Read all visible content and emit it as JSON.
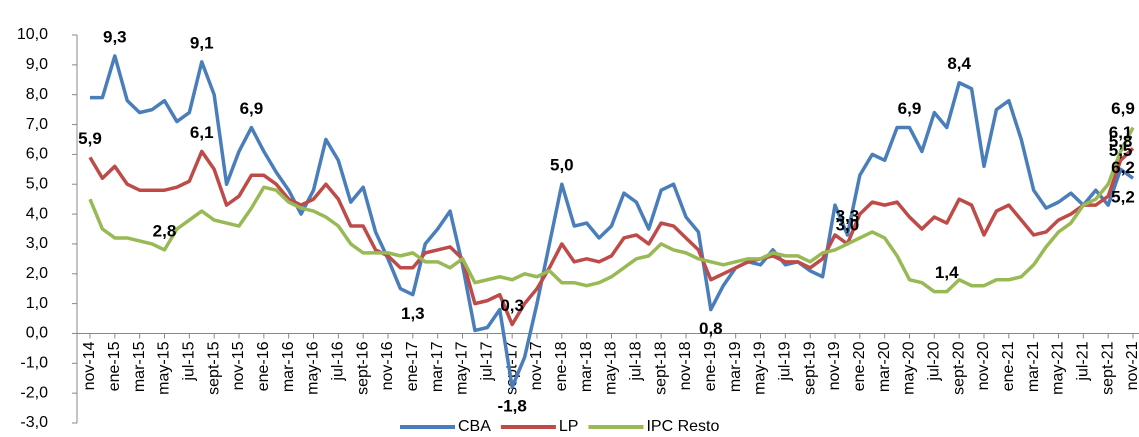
{
  "chart_data": {
    "type": "line",
    "categories": [
      "nov-14",
      null,
      "ene-15",
      null,
      "mar-15",
      null,
      "may-15",
      null,
      "jul-15",
      null,
      "sept-15",
      null,
      "nov-15",
      null,
      "ene-16",
      null,
      "mar-16",
      null,
      "may-16",
      null,
      "jul-16",
      null,
      "sept-16",
      null,
      "nov-16",
      null,
      "ene-17",
      null,
      "mar-17",
      null,
      "may-17",
      null,
      "jul-17",
      null,
      "sept-17",
      null,
      "nov-17",
      null,
      "ene-18",
      null,
      "mar-18",
      null,
      "may-18",
      null,
      "jul-18",
      null,
      "sept-18",
      null,
      "nov-18",
      null,
      "ene-19",
      null,
      "mar-19",
      null,
      "may-19",
      null,
      "jul-19",
      null,
      "sept-19",
      null,
      "nov-19",
      null,
      "ene-20",
      null,
      "mar-20",
      null,
      "may-20",
      null,
      "jul-20",
      null,
      "sept-20",
      null,
      "nov-20",
      null,
      "ene-21",
      null,
      "mar-21",
      null,
      "may-21",
      null,
      "jul-21",
      null,
      "sept-21",
      null,
      "nov-21"
    ],
    "series": [
      {
        "name": "CBA",
        "color": "#4a7ebb",
        "values": [
          7.9,
          7.9,
          9.3,
          7.8,
          7.4,
          7.5,
          7.8,
          7.1,
          7.4,
          9.1,
          8.0,
          5.0,
          6.1,
          6.9,
          6.1,
          5.4,
          4.8,
          4.0,
          4.8,
          6.5,
          5.8,
          4.4,
          4.9,
          3.4,
          2.5,
          1.5,
          1.3,
          3.0,
          3.5,
          4.1,
          2.3,
          0.1,
          0.2,
          0.8,
          -1.8,
          -0.8,
          1.0,
          3.0,
          5.0,
          3.6,
          3.7,
          3.2,
          3.6,
          4.7,
          4.4,
          3.5,
          4.8,
          5.0,
          3.9,
          3.4,
          0.8,
          1.6,
          2.2,
          2.4,
          2.3,
          2.8,
          2.3,
          2.4,
          2.1,
          1.9,
          4.3,
          3.3,
          5.3,
          6.0,
          5.8,
          6.9,
          6.9,
          6.1,
          7.4,
          6.9,
          8.4,
          8.2,
          5.6,
          7.5,
          7.8,
          6.5,
          4.8,
          4.2,
          4.4,
          4.7,
          4.3,
          4.8,
          4.3,
          5.5,
          5.2
        ],
        "value_labels": [
          null,
          null,
          "9,3",
          null,
          null,
          null,
          null,
          null,
          null,
          "9,1",
          null,
          null,
          null,
          "6,9",
          null,
          null,
          null,
          null,
          null,
          null,
          null,
          null,
          null,
          null,
          null,
          null,
          "1,3",
          null,
          null,
          null,
          null,
          null,
          null,
          null,
          "-1,8",
          null,
          null,
          null,
          "5,0",
          null,
          null,
          null,
          null,
          null,
          null,
          null,
          null,
          null,
          null,
          null,
          "0,8",
          null,
          null,
          null,
          null,
          null,
          null,
          null,
          null,
          null,
          null,
          "3,3",
          null,
          null,
          null,
          null,
          "6,9",
          null,
          null,
          null,
          "8,4",
          null,
          null,
          null,
          null,
          null,
          null,
          null,
          null,
          null,
          null,
          null,
          null,
          "5,5",
          "5,2"
        ]
      },
      {
        "name": "LP",
        "color": "#be4b48",
        "values": [
          5.9,
          5.2,
          5.6,
          5.0,
          4.8,
          4.8,
          4.8,
          4.9,
          5.1,
          6.1,
          5.5,
          4.3,
          4.6,
          5.3,
          5.3,
          5.0,
          4.5,
          4.3,
          4.5,
          5.0,
          4.5,
          3.6,
          3.6,
          2.8,
          2.6,
          2.2,
          2.2,
          2.7,
          2.8,
          2.9,
          2.5,
          1.0,
          1.1,
          1.3,
          0.3,
          1.0,
          1.5,
          2.2,
          3.0,
          2.4,
          2.5,
          2.4,
          2.6,
          3.2,
          3.3,
          3.0,
          3.7,
          3.6,
          3.2,
          2.8,
          1.8,
          2.0,
          2.2,
          2.4,
          2.5,
          2.6,
          2.4,
          2.4,
          2.2,
          2.5,
          3.3,
          3.0,
          4.0,
          4.4,
          4.3,
          4.4,
          3.9,
          3.5,
          3.9,
          3.7,
          4.5,
          4.3,
          3.3,
          4.1,
          4.3,
          3.8,
          3.3,
          3.4,
          3.8,
          4.0,
          4.3,
          4.3,
          4.6,
          5.8,
          6.2
        ],
        "value_labels": [
          "5,9",
          null,
          null,
          null,
          null,
          null,
          null,
          null,
          null,
          "6,1",
          null,
          null,
          null,
          null,
          null,
          null,
          null,
          null,
          null,
          null,
          null,
          null,
          null,
          null,
          null,
          null,
          null,
          null,
          null,
          null,
          null,
          null,
          null,
          null,
          "0,3",
          null,
          null,
          null,
          null,
          null,
          null,
          null,
          null,
          null,
          null,
          null,
          null,
          null,
          null,
          null,
          null,
          null,
          null,
          null,
          null,
          null,
          null,
          null,
          null,
          null,
          null,
          "3,0",
          null,
          null,
          null,
          null,
          null,
          null,
          null,
          null,
          null,
          null,
          null,
          null,
          null,
          null,
          null,
          null,
          null,
          null,
          null,
          null,
          null,
          "5,8",
          "6,2"
        ]
      },
      {
        "name": "IPC Resto",
        "color": "#98b954",
        "values": [
          4.5,
          3.5,
          3.2,
          3.2,
          3.1,
          3.0,
          2.8,
          3.5,
          3.8,
          4.1,
          3.8,
          3.7,
          3.6,
          4.2,
          4.9,
          4.8,
          4.4,
          4.2,
          4.1,
          3.9,
          3.6,
          3.0,
          2.7,
          2.7,
          2.7,
          2.6,
          2.7,
          2.4,
          2.4,
          2.2,
          2.5,
          1.7,
          1.8,
          1.9,
          1.8,
          2.0,
          1.9,
          2.1,
          1.7,
          1.7,
          1.6,
          1.7,
          1.9,
          2.2,
          2.5,
          2.6,
          3.0,
          2.8,
          2.7,
          2.5,
          2.4,
          2.3,
          2.4,
          2.5,
          2.5,
          2.7,
          2.6,
          2.6,
          2.4,
          2.7,
          2.8,
          3.0,
          3.2,
          3.4,
          3.2,
          2.6,
          1.8,
          1.7,
          1.4,
          1.4,
          1.8,
          1.6,
          1.6,
          1.8,
          1.8,
          1.9,
          2.3,
          2.9,
          3.4,
          3.7,
          4.3,
          4.5,
          5.0,
          6.1,
          6.9
        ],
        "value_labels": [
          null,
          null,
          null,
          null,
          null,
          null,
          "2,8",
          null,
          null,
          null,
          null,
          null,
          null,
          null,
          null,
          null,
          null,
          null,
          null,
          null,
          null,
          null,
          null,
          null,
          null,
          null,
          null,
          null,
          null,
          null,
          null,
          null,
          null,
          null,
          null,
          null,
          null,
          null,
          null,
          null,
          null,
          null,
          null,
          null,
          null,
          null,
          null,
          null,
          null,
          null,
          null,
          null,
          null,
          null,
          null,
          null,
          null,
          null,
          null,
          null,
          null,
          null,
          null,
          null,
          null,
          null,
          null,
          null,
          null,
          "1,4",
          null,
          null,
          null,
          null,
          null,
          null,
          null,
          null,
          null,
          null,
          null,
          null,
          null,
          "6,1",
          "6,9"
        ]
      }
    ],
    "ylim": [
      -3,
      10
    ],
    "yticks": [
      {
        "value": -3,
        "label": "-3,0"
      },
      {
        "value": -2,
        "label": "-2,0"
      },
      {
        "value": -1,
        "label": "-1,0"
      },
      {
        "value": 0,
        "label": "0,0"
      },
      {
        "value": 1,
        "label": "1,0"
      },
      {
        "value": 2,
        "label": "2,0"
      },
      {
        "value": 3,
        "label": "3,0"
      },
      {
        "value": 4,
        "label": "4,0"
      },
      {
        "value": 5,
        "label": "5,0"
      },
      {
        "value": 6,
        "label": "6,0"
      },
      {
        "value": 7,
        "label": "7,0"
      },
      {
        "value": 8,
        "label": "8,0"
      },
      {
        "value": 9,
        "label": "9,0"
      },
      {
        "value": 10,
        "label": "10,0"
      }
    ],
    "grid": false,
    "legend": "bottom"
  }
}
